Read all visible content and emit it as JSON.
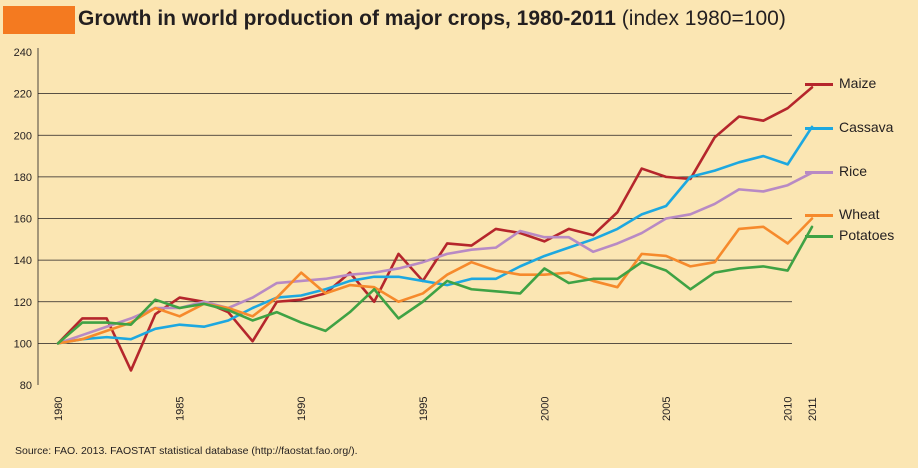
{
  "title": {
    "main": "Growth in world production of major crops, 1980-2011",
    "sub": "(index 1980=100)"
  },
  "source": "Source: FAO. 2013. FAOSTAT statistical database (http://faostat.fao.org/).",
  "colors": {
    "background": "#fbe6b3",
    "title_accent": "#f47a20",
    "maize": "#b5262c",
    "cassava": "#1da8e0",
    "rice": "#b88ac4",
    "wheat": "#f68a2c",
    "potatoes": "#3fa244"
  },
  "chart_data": {
    "type": "line",
    "title": "Growth in world production of major crops, 1980-2011 (index 1980=100)",
    "xlabel": "",
    "ylabel": "",
    "x": [
      1980,
      1981,
      1982,
      1983,
      1984,
      1985,
      1986,
      1987,
      1988,
      1989,
      1990,
      1991,
      1992,
      1993,
      1994,
      1995,
      1996,
      1997,
      1998,
      1999,
      2000,
      2001,
      2002,
      2003,
      2004,
      2005,
      2006,
      2007,
      2008,
      2009,
      2010,
      2011
    ],
    "x_ticks": [
      "1980",
      "1985",
      "1990",
      "1995",
      "2000",
      "2005",
      "2010",
      "2011"
    ],
    "y_ticks": [
      "80",
      "100",
      "120",
      "140",
      "160",
      "180",
      "200",
      "220",
      "240"
    ],
    "ylim": [
      80,
      240
    ],
    "xlim": [
      1980,
      2011
    ],
    "grid": true,
    "legend_position": "right",
    "series": [
      {
        "name": "Maize",
        "color": "#b5262c",
        "values": [
          100,
          112,
          112,
          87,
          114,
          122,
          120,
          115,
          101,
          120,
          121,
          124,
          134,
          120,
          143,
          130,
          148,
          147,
          155,
          153,
          149,
          155,
          152,
          163,
          184,
          180,
          179,
          199,
          209,
          207,
          213,
          223
        ]
      },
      {
        "name": "Cassava",
        "color": "#1da8e0",
        "values": [
          100,
          102,
          103,
          102,
          107,
          109,
          108,
          111,
          117,
          122,
          123,
          126,
          130,
          132,
          132,
          130,
          128,
          131,
          131,
          137,
          142,
          146,
          150,
          155,
          162,
          166,
          180,
          183,
          187,
          190,
          186,
          204
        ]
      },
      {
        "name": "Rice",
        "color": "#b88ac4",
        "values": [
          100,
          104,
          108,
          112,
          117,
          117,
          120,
          117,
          122,
          129,
          130,
          131,
          133,
          134,
          136,
          139,
          143,
          145,
          146,
          154,
          151,
          151,
          144,
          148,
          153,
          160,
          162,
          167,
          174,
          173,
          176,
          182
        ]
      },
      {
        "name": "Wheat",
        "color": "#f68a2c",
        "values": [
          100,
          102,
          106,
          110,
          117,
          113,
          119,
          117,
          113,
          122,
          134,
          124,
          128,
          127,
          120,
          124,
          133,
          139,
          135,
          133,
          133,
          134,
          130,
          127,
          143,
          142,
          137,
          139,
          155,
          156,
          148,
          160
        ]
      },
      {
        "name": "Potatoes",
        "color": "#3fa244",
        "values": [
          100,
          110,
          110,
          109,
          121,
          117,
          119,
          116,
          111,
          115,
          110,
          106,
          115,
          126,
          112,
          120,
          130,
          126,
          125,
          124,
          136,
          129,
          131,
          131,
          139,
          135,
          126,
          134,
          136,
          137,
          135,
          156
        ]
      }
    ]
  }
}
